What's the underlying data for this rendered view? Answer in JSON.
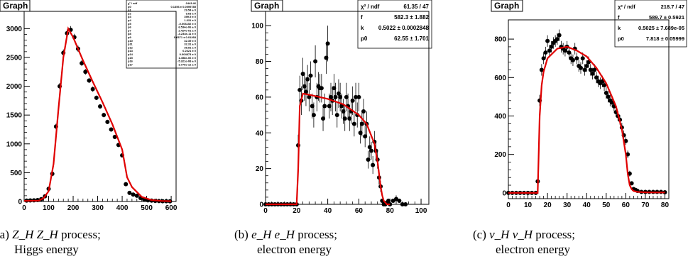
{
  "chart_data": [
    {
      "type": "scatter",
      "title": "Graph",
      "fit": "red curve",
      "xlim": [
        0,
        620
      ],
      "ylim": [
        0,
        3300
      ],
      "xticks": [
        0,
        100,
        200,
        300,
        400,
        500,
        600
      ],
      "yticks": [
        0,
        500,
        1000,
        1500,
        2000,
        2500,
        3000
      ],
      "x": [
        10,
        25,
        40,
        55,
        70,
        85,
        100,
        115,
        130,
        145,
        160,
        175,
        190,
        205,
        220,
        235,
        250,
        265,
        280,
        295,
        310,
        325,
        340,
        355,
        370,
        385,
        400,
        415,
        430,
        445,
        460,
        475,
        490,
        505,
        520,
        535,
        550,
        565,
        580,
        595
      ],
      "y": [
        15,
        18,
        20,
        25,
        40,
        90,
        220,
        480,
        1300,
        2000,
        2580,
        2920,
        2980,
        2850,
        2650,
        2400,
        2250,
        2100,
        1950,
        1800,
        1650,
        1500,
        1380,
        1250,
        1120,
        980,
        800,
        300,
        150,
        120,
        100,
        60,
        35,
        20,
        15,
        10,
        8,
        5,
        5,
        3
      ],
      "yerr": [
        10,
        10,
        10,
        10,
        12,
        20,
        30,
        40,
        50,
        55,
        60,
        65,
        65,
        60,
        55,
        50,
        50,
        45,
        45,
        40,
        40,
        40,
        38,
        38,
        35,
        35,
        30,
        20,
        15,
        15,
        12,
        10,
        8,
        8,
        6,
        6,
        5,
        5,
        5,
        4
      ],
      "fit_x": [
        0,
        60,
        80,
        100,
        120,
        140,
        160,
        180,
        200,
        240,
        280,
        320,
        360,
        400,
        420,
        440,
        480,
        520,
        560,
        600
      ],
      "fit_y": [
        10,
        15,
        60,
        180,
        650,
        1600,
        2500,
        3000,
        2850,
        2450,
        2080,
        1720,
        1340,
        900,
        420,
        250,
        80,
        25,
        10,
        5
      ],
      "stats_rows": [
        [
          "χ² / ndf",
          "2443.46"
        ],
        [
          "p0",
          "0.1356 ± 0.0599785"
        ],
        [
          "p1",
          "29.54 ± 0"
        ],
        [
          "p2",
          "9.63 ± 0"
        ],
        [
          "p3",
          "399.5 ± 0"
        ],
        [
          "p4",
          "1.331 ± 0"
        ],
        [
          "p5",
          "-0.006152 ± 0"
        ],
        [
          "p6",
          "6.534e-06 ± 0"
        ],
        [
          "p7",
          "2.424e-01 ± 0"
        ],
        [
          "p8",
          "-3.234e-11 ± 0"
        ],
        [
          "p9",
          "0.6371 ± 0.01268"
        ],
        [
          "p10",
          "32.39 ± 0"
        ],
        [
          "p11",
          "32.31 ± 0"
        ],
        [
          "p12",
          "35.51 ± 0"
        ],
        [
          "p13",
          "0.2321 ± 0"
        ],
        [
          "p14",
          "0.004873 ± 0"
        ],
        [
          "p15",
          "1.458e-06 ± 0"
        ],
        [
          "p16",
          "-5.321e-08 ± 0"
        ],
        [
          "p17",
          "3.776e-12 ± 0"
        ]
      ],
      "caption_label": "(a)",
      "caption_process": "Z_H Z_H",
      "caption_line1": "process;",
      "caption_line2": "Higgs energy"
    },
    {
      "type": "scatter",
      "title": "Graph",
      "fit": "red curve",
      "xlim": [
        0,
        105
      ],
      "ylim": [
        0,
        108
      ],
      "xticks": [
        0,
        20,
        40,
        60,
        80,
        100
      ],
      "yticks": [
        0,
        20,
        40,
        60,
        80,
        100
      ],
      "x": [
        0,
        2,
        4,
        6,
        8,
        10,
        12,
        14,
        16,
        18,
        20,
        21,
        22,
        23,
        24,
        25,
        26,
        27,
        28,
        29,
        30,
        31,
        32,
        33,
        34,
        35,
        36,
        37,
        38,
        39,
        40,
        41,
        42,
        43,
        44,
        45,
        46,
        47,
        48,
        49,
        50,
        51,
        52,
        53,
        54,
        55,
        56,
        57,
        58,
        59,
        60,
        61,
        62,
        63,
        64,
        65,
        66,
        67,
        68,
        69,
        70,
        71,
        72,
        73,
        74,
        75,
        76,
        77,
        78,
        79,
        80,
        82,
        84,
        86,
        88,
        90
      ],
      "y": [
        0,
        0,
        0,
        0,
        0,
        0,
        0,
        0,
        0,
        0,
        0,
        33,
        64,
        58,
        73,
        66,
        63,
        70,
        60,
        72,
        55,
        50,
        80,
        60,
        66,
        65,
        65,
        48,
        55,
        82,
        90,
        55,
        60,
        58,
        65,
        60,
        50,
        62,
        60,
        55,
        52,
        48,
        60,
        55,
        48,
        52,
        58,
        45,
        60,
        50,
        60,
        40,
        45,
        52,
        38,
        45,
        25,
        32,
        30,
        22,
        35,
        30,
        25,
        15,
        10,
        2,
        0,
        0,
        1,
        2,
        0,
        2,
        3,
        2,
        0,
        0
      ],
      "yerr": [
        0,
        0,
        0,
        0,
        0,
        0,
        0,
        0,
        0,
        0,
        0,
        6,
        8,
        8,
        9,
        8,
        8,
        8,
        8,
        8,
        7,
        7,
        9,
        8,
        8,
        8,
        8,
        7,
        7,
        9,
        10,
        7,
        8,
        8,
        8,
        8,
        7,
        8,
        8,
        7,
        7,
        7,
        8,
        7,
        7,
        7,
        8,
        7,
        8,
        7,
        8,
        6,
        7,
        7,
        6,
        7,
        5,
        6,
        5,
        5,
        6,
        5,
        5,
        4,
        3,
        1,
        0,
        0,
        1,
        1,
        0,
        1,
        2,
        1,
        0,
        0
      ],
      "fit_x": [
        0,
        20,
        21,
        22,
        24,
        30,
        40,
        50,
        60,
        65,
        70,
        72,
        74,
        75,
        76,
        78,
        80
      ],
      "fit_y": [
        0,
        0,
        20,
        55,
        62,
        61,
        59,
        56,
        50,
        45,
        34,
        24,
        10,
        5,
        2,
        0,
        0
      ],
      "stats_rows": [
        [
          "χ² / ndf",
          "61.35 / 47"
        ],
        [
          "f",
          "582.3 ± 1.882"
        ],
        [
          "k",
          "0.5022 ± 0.0002848"
        ],
        [
          "p0",
          "62.55 ± 1.701"
        ]
      ],
      "caption_label": "(b)",
      "caption_process": "e_H e_H",
      "caption_line1": "process;",
      "caption_line2": "electron energy"
    },
    {
      "type": "scatter",
      "title": "Graph",
      "fit": "red curve",
      "xlim": [
        0,
        82
      ],
      "ylim": [
        -30,
        900
      ],
      "xticks": [
        0,
        10,
        20,
        30,
        40,
        50,
        60,
        70,
        80
      ],
      "yticks": [
        0,
        200,
        400,
        600,
        800
      ],
      "x": [
        0,
        2,
        4,
        6,
        8,
        10,
        12,
        14,
        15,
        16,
        17,
        18,
        19,
        20,
        21,
        22,
        23,
        24,
        25,
        26,
        27,
        28,
        29,
        30,
        31,
        32,
        33,
        34,
        35,
        36,
        37,
        38,
        39,
        40,
        41,
        42,
        43,
        44,
        45,
        46,
        47,
        48,
        49,
        50,
        51,
        52,
        53,
        54,
        55,
        56,
        57,
        58,
        59,
        60,
        61,
        62,
        63,
        64,
        65,
        66,
        68,
        70,
        72,
        74,
        76,
        78,
        80
      ],
      "y": [
        0,
        0,
        0,
        0,
        0,
        0,
        0,
        0,
        60,
        480,
        640,
        700,
        730,
        790,
        740,
        760,
        780,
        790,
        800,
        820,
        760,
        750,
        740,
        760,
        730,
        700,
        690,
        750,
        700,
        660,
        650,
        700,
        640,
        660,
        680,
        640,
        620,
        640,
        600,
        580,
        570,
        580,
        560,
        520,
        500,
        480,
        470,
        450,
        420,
        400,
        380,
        340,
        300,
        270,
        200,
        100,
        50,
        20,
        15,
        10,
        5,
        5,
        5,
        5,
        5,
        5,
        3
      ],
      "yerr": [
        0,
        0,
        0,
        0,
        0,
        0,
        0,
        0,
        10,
        30,
        30,
        30,
        30,
        30,
        30,
        30,
        30,
        30,
        30,
        30,
        30,
        30,
        30,
        30,
        30,
        30,
        30,
        30,
        30,
        30,
        30,
        30,
        30,
        30,
        30,
        30,
        30,
        30,
        30,
        30,
        30,
        30,
        30,
        30,
        30,
        30,
        25,
        25,
        25,
        25,
        25,
        25,
        25,
        20,
        20,
        15,
        10,
        5,
        5,
        5,
        3,
        3,
        3,
        3,
        3,
        3,
        3
      ],
      "fit_x": [
        0,
        15,
        16,
        17,
        18,
        20,
        25,
        30,
        35,
        40,
        45,
        50,
        55,
        58,
        60,
        61,
        62,
        63,
        64,
        66,
        70,
        75,
        80
      ],
      "fit_y": [
        0,
        0,
        400,
        560,
        630,
        700,
        750,
        760,
        740,
        710,
        650,
        570,
        450,
        330,
        200,
        100,
        40,
        20,
        10,
        5,
        3,
        2,
        2
      ],
      "stats_rows": [
        [
          "χ² / ndf",
          "218.7 / 47"
        ],
        [
          "f",
          "589.7 ± 0.5921"
        ],
        [
          "k",
          "0.5025 ± 7.689e-05"
        ],
        [
          "p0",
          "7.818 ± 0.05999"
        ]
      ],
      "caption_label": "(c)",
      "caption_process": "ν_H ν_H",
      "caption_line1": "process;",
      "caption_line2": "electron energy"
    }
  ],
  "colors": {
    "fit": "#e00000",
    "points": "#000000"
  }
}
